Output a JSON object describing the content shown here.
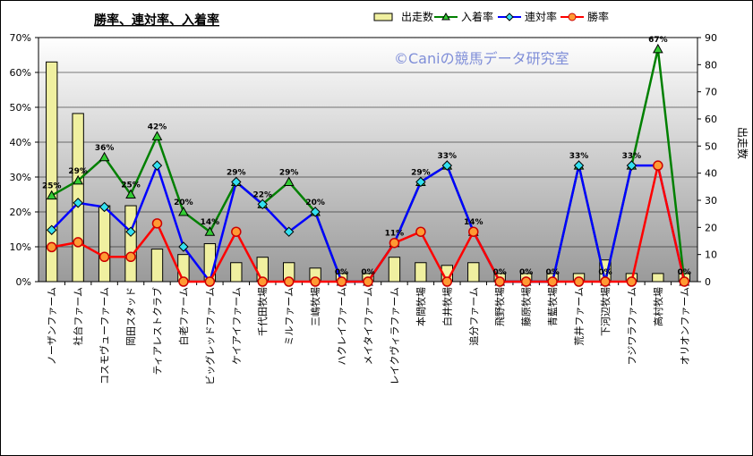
{
  "chart_data": {
    "type": "bar+line",
    "title": "勝率、連対率、入着率",
    "watermark": "©Caniの競馬データ研究室",
    "y2label": "出走数",
    "ylim": [
      0,
      70
    ],
    "y_ticks": [
      "0%",
      "10%",
      "20%",
      "30%",
      "40%",
      "50%",
      "60%",
      "70%"
    ],
    "y2lim": [
      0,
      90
    ],
    "y2_ticks": [
      "0",
      "10",
      "20",
      "30",
      "40",
      "50",
      "60",
      "70",
      "80",
      "90"
    ],
    "grid": true,
    "legend_position": "top",
    "categories": [
      "ノーザンファーム",
      "社台ファーム",
      "コスモヴューファーム",
      "岡田スタッド",
      "ティアレストクラブ",
      "白老ファーム",
      "ビッグレッドファーム",
      "ケイアイファーム",
      "千代田牧場",
      "ミルファーム",
      "三嶋牧場",
      "ハクレイファーム",
      "メイタイファーム",
      "レイクヴィラファーム",
      "本間牧場",
      "白井牧場",
      "追分ファーム",
      "飛野牧場",
      "藤原牧場",
      "青藍牧場",
      "荒井ファーム",
      "下河辺牧場",
      "フジワラファーム",
      "高村牧場",
      "オリオンファーム"
    ],
    "series": [
      {
        "name": "出走数",
        "kind": "bar",
        "axis": "right",
        "color": "#f0f0a0",
        "values": [
          81,
          62,
          28,
          28,
          12,
          10,
          14,
          7,
          9,
          7,
          5,
          3,
          3,
          9,
          7,
          6,
          7,
          3,
          3,
          3,
          3,
          8,
          3,
          3,
          3
        ]
      },
      {
        "name": "入着率",
        "kind": "line",
        "axis": "left",
        "color": "#008000",
        "values": [
          24.7,
          29.0,
          35.7,
          25.0,
          41.7,
          20.0,
          14.3,
          28.6,
          22.2,
          28.6,
          20.0,
          0,
          0,
          11.1,
          28.6,
          33.3,
          14.3,
          0,
          0,
          0,
          33.3,
          0,
          33.3,
          66.7,
          0
        ]
      },
      {
        "name": "連対率",
        "kind": "line",
        "axis": "left",
        "color": "#0000ff",
        "values": [
          14.8,
          22.6,
          21.4,
          14.3,
          33.3,
          10.0,
          0,
          28.6,
          22.2,
          14.3,
          20.0,
          0,
          0,
          11.1,
          28.6,
          33.3,
          14.3,
          0,
          0,
          0,
          33.3,
          0,
          33.3,
          33.3,
          0
        ]
      },
      {
        "name": "勝率",
        "kind": "line",
        "axis": "left",
        "color": "#ff0000",
        "values": [
          9.9,
          11.3,
          7.1,
          7.1,
          16.7,
          0,
          0,
          14.3,
          0,
          0,
          0,
          0,
          0,
          11.1,
          14.3,
          0,
          14.3,
          0,
          0,
          0,
          0,
          0,
          0,
          33.3,
          0
        ]
      }
    ],
    "point_labels": [
      "25%",
      "29%",
      "36%",
      "25%",
      "42%",
      "20%",
      "14%",
      "29%",
      "22%",
      "29%",
      "20%",
      "0%",
      "0%",
      "11%",
      "29%",
      "33%",
      "14%",
      "0%",
      "0%",
      "0%",
      "33%",
      "0%",
      "33%",
      "67%",
      "0%"
    ]
  }
}
